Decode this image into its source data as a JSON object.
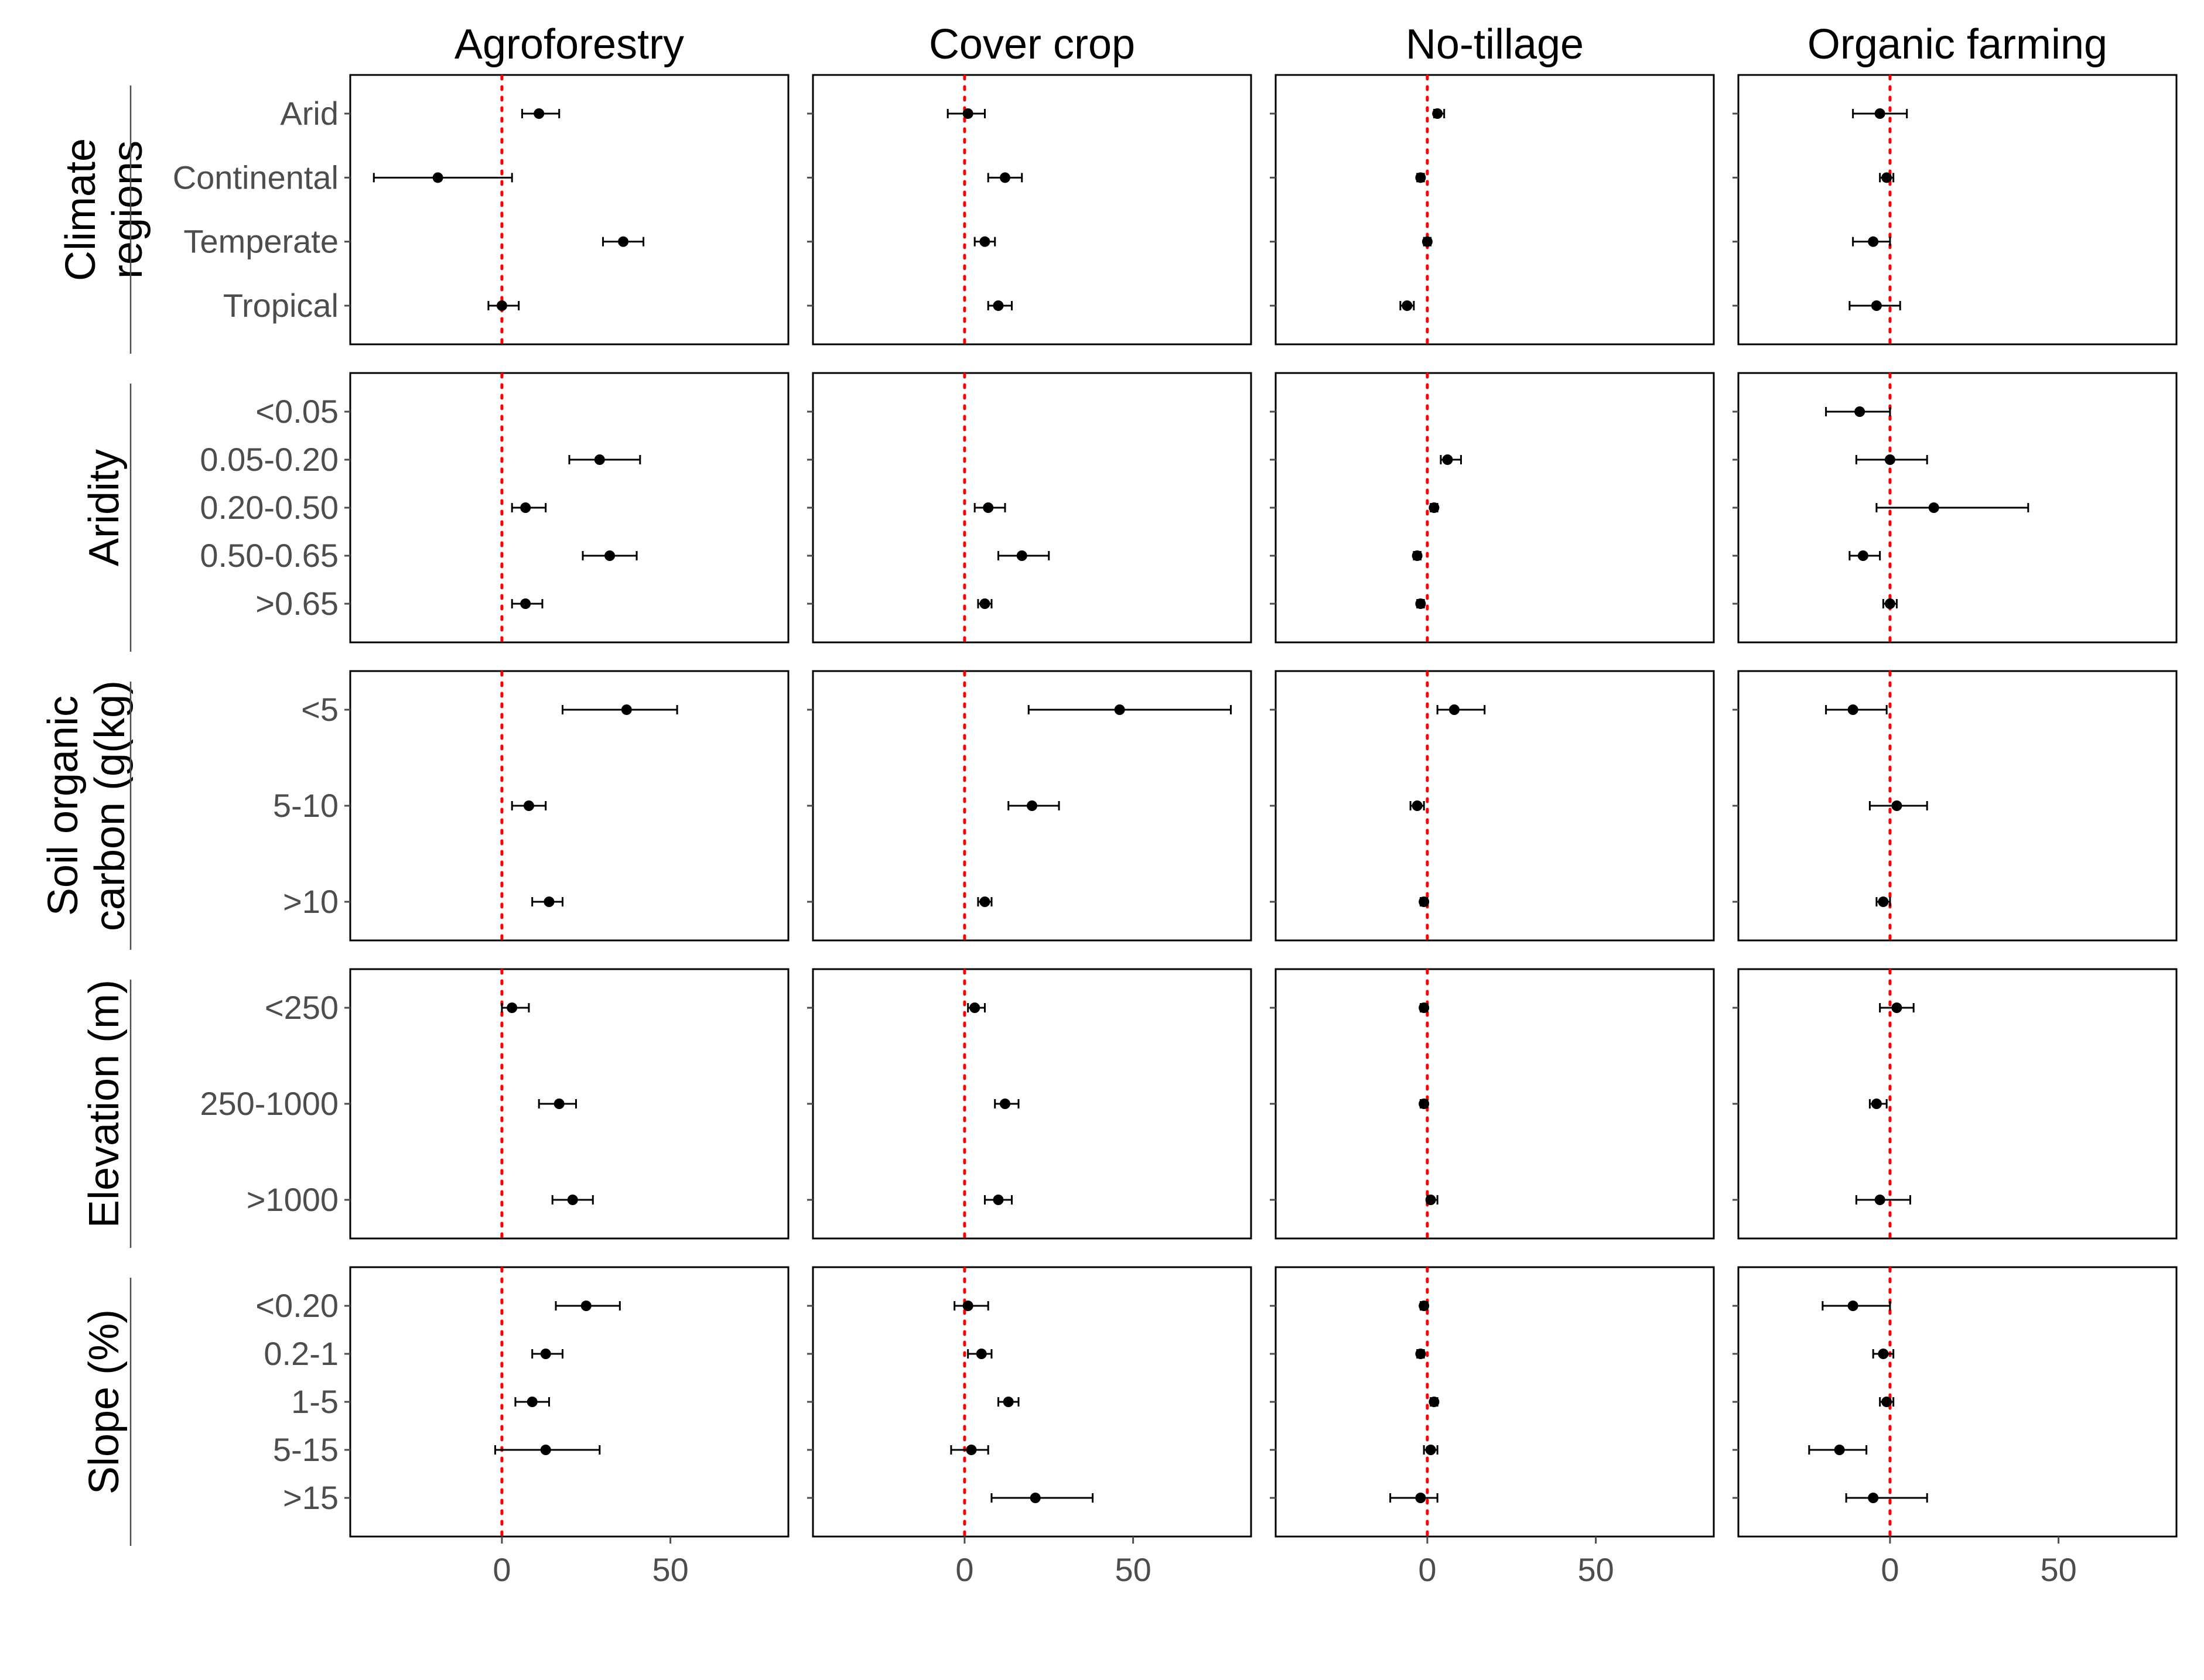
{
  "chart_data": {
    "type": "forest",
    "reference_line": {
      "x": 0,
      "color": "#ff0000",
      "style": "dotted"
    },
    "xlim": [
      -45,
      85
    ],
    "x_ticks": [
      0,
      50
    ],
    "x_tick_labels": [
      "0",
      "50"
    ],
    "grid": false,
    "columns": [
      {
        "key": "agroforestry",
        "label": "Agroforestry"
      },
      {
        "key": "cover_crop",
        "label": "Cover crop"
      },
      {
        "key": "no_tillage",
        "label": "No-tillage"
      },
      {
        "key": "organic_farming",
        "label": "Organic farming"
      }
    ],
    "rows": [
      {
        "key": "climate",
        "label_lines": [
          "Climate",
          "regions"
        ],
        "categories": [
          "Arid",
          "Continental",
          "Temperate",
          "Tropical"
        ],
        "series": [
          {
            "column": "agroforestry",
            "points": [
              {
                "mean": 11,
                "lower": 6,
                "upper": 17
              },
              {
                "mean": -19,
                "lower": -38,
                "upper": 3
              },
              {
                "mean": 36,
                "lower": 30,
                "upper": 42
              },
              {
                "mean": 0,
                "lower": -4,
                "upper": 5
              }
            ]
          },
          {
            "column": "cover_crop",
            "points": [
              {
                "mean": 1,
                "lower": -5,
                "upper": 6
              },
              {
                "mean": 12,
                "lower": 7,
                "upper": 17
              },
              {
                "mean": 6,
                "lower": 3,
                "upper": 9
              },
              {
                "mean": 10,
                "lower": 7,
                "upper": 14
              }
            ]
          },
          {
            "column": "no_tillage",
            "points": [
              {
                "mean": 3,
                "lower": 2,
                "upper": 5
              },
              {
                "mean": -2,
                "lower": -3,
                "upper": -1
              },
              {
                "mean": 0,
                "lower": -1,
                "upper": 1
              },
              {
                "mean": -6,
                "lower": -8,
                "upper": -4
              }
            ]
          },
          {
            "column": "organic_farming",
            "points": [
              {
                "mean": -3,
                "lower": -11,
                "upper": 5
              },
              {
                "mean": -1,
                "lower": -3,
                "upper": 1
              },
              {
                "mean": -5,
                "lower": -11,
                "upper": 0
              },
              {
                "mean": -4,
                "lower": -12,
                "upper": 3
              }
            ]
          }
        ]
      },
      {
        "key": "aridity",
        "label_lines": [
          "Aridity"
        ],
        "categories": [
          "<0.05",
          "0.05-0.20",
          "0.20-0.50",
          "0.50-0.65",
          ">0.65"
        ],
        "series": [
          {
            "column": "agroforestry",
            "points": [
              null,
              {
                "mean": 29,
                "lower": 20,
                "upper": 41
              },
              {
                "mean": 7,
                "lower": 3,
                "upper": 13
              },
              {
                "mean": 32,
                "lower": 24,
                "upper": 40
              },
              {
                "mean": 7,
                "lower": 3,
                "upper": 12
              }
            ]
          },
          {
            "column": "cover_crop",
            "points": [
              null,
              null,
              {
                "mean": 7,
                "lower": 3,
                "upper": 12
              },
              {
                "mean": 17,
                "lower": 10,
                "upper": 25
              },
              {
                "mean": 6,
                "lower": 4,
                "upper": 8
              }
            ]
          },
          {
            "column": "no_tillage",
            "points": [
              null,
              {
                "mean": 6,
                "lower": 4,
                "upper": 10
              },
              {
                "mean": 2,
                "lower": 1,
                "upper": 3
              },
              {
                "mean": -3,
                "lower": -4,
                "upper": -2
              },
              {
                "mean": -2,
                "lower": -3,
                "upper": -1
              }
            ]
          },
          {
            "column": "organic_farming",
            "points": [
              {
                "mean": -9,
                "lower": -19,
                "upper": 0
              },
              {
                "mean": 0,
                "lower": -10,
                "upper": 11
              },
              {
                "mean": 13,
                "lower": -4,
                "upper": 41
              },
              {
                "mean": -8,
                "lower": -12,
                "upper": -3
              },
              {
                "mean": 0,
                "lower": -2,
                "upper": 2
              }
            ]
          }
        ]
      },
      {
        "key": "soc",
        "label_lines": [
          "Soil organic",
          "carbon (g(kg)"
        ],
        "categories": [
          "<5",
          "5-10",
          ">10"
        ],
        "series": [
          {
            "column": "agroforestry",
            "points": [
              {
                "mean": 37,
                "lower": 18,
                "upper": 52
              },
              {
                "mean": 8,
                "lower": 3,
                "upper": 13
              },
              {
                "mean": 14,
                "lower": 9,
                "upper": 18
              }
            ]
          },
          {
            "column": "cover_crop",
            "points": [
              {
                "mean": 46,
                "lower": 19,
                "upper": 79
              },
              {
                "mean": 20,
                "lower": 13,
                "upper": 28
              },
              {
                "mean": 6,
                "lower": 4,
                "upper": 8
              }
            ]
          },
          {
            "column": "no_tillage",
            "points": [
              {
                "mean": 8,
                "lower": 3,
                "upper": 17
              },
              {
                "mean": -3,
                "lower": -5,
                "upper": -1
              },
              {
                "mean": -1,
                "lower": -2,
                "upper": 0
              }
            ]
          },
          {
            "column": "organic_farming",
            "points": [
              {
                "mean": -11,
                "lower": -19,
                "upper": -1
              },
              {
                "mean": 2,
                "lower": -6,
                "upper": 11
              },
              {
                "mean": -2,
                "lower": -4,
                "upper": 0
              }
            ]
          }
        ]
      },
      {
        "key": "elevation",
        "label_lines": [
          "Elevation (m)"
        ],
        "categories": [
          "<250",
          "250-1000",
          ">1000"
        ],
        "series": [
          {
            "column": "agroforestry",
            "points": [
              {
                "mean": 3,
                "lower": 0,
                "upper": 8
              },
              {
                "mean": 17,
                "lower": 11,
                "upper": 22
              },
              {
                "mean": 21,
                "lower": 15,
                "upper": 27
              }
            ]
          },
          {
            "column": "cover_crop",
            "points": [
              {
                "mean": 3,
                "lower": 1,
                "upper": 6
              },
              {
                "mean": 12,
                "lower": 9,
                "upper": 16
              },
              {
                "mean": 10,
                "lower": 6,
                "upper": 14
              }
            ]
          },
          {
            "column": "no_tillage",
            "points": [
              {
                "mean": -1,
                "lower": -2,
                "upper": 0
              },
              {
                "mean": -1,
                "lower": -2,
                "upper": 0
              },
              {
                "mean": 1,
                "lower": 0,
                "upper": 3
              }
            ]
          },
          {
            "column": "organic_farming",
            "points": [
              {
                "mean": 2,
                "lower": -3,
                "upper": 7
              },
              {
                "mean": -4,
                "lower": -6,
                "upper": -1
              },
              {
                "mean": -3,
                "lower": -10,
                "upper": 6
              }
            ]
          }
        ]
      },
      {
        "key": "slope",
        "label_lines": [
          "Slope (%)"
        ],
        "categories": [
          "<0.20",
          "0.2-1",
          "1-5",
          "5-15",
          ">15"
        ],
        "series": [
          {
            "column": "agroforestry",
            "points": [
              {
                "mean": 25,
                "lower": 16,
                "upper": 35
              },
              {
                "mean": 13,
                "lower": 9,
                "upper": 18
              },
              {
                "mean": 9,
                "lower": 4,
                "upper": 14
              },
              {
                "mean": 13,
                "lower": -2,
                "upper": 29
              },
              null
            ]
          },
          {
            "column": "cover_crop",
            "points": [
              {
                "mean": 1,
                "lower": -3,
                "upper": 7
              },
              {
                "mean": 5,
                "lower": 1,
                "upper": 8
              },
              {
                "mean": 13,
                "lower": 10,
                "upper": 16
              },
              {
                "mean": 2,
                "lower": -4,
                "upper": 7
              },
              {
                "mean": 21,
                "lower": 8,
                "upper": 38
              }
            ]
          },
          {
            "column": "no_tillage",
            "points": [
              {
                "mean": -1,
                "lower": -2,
                "upper": 0
              },
              {
                "mean": -2,
                "lower": -3,
                "upper": -1
              },
              {
                "mean": 2,
                "lower": 1,
                "upper": 3
              },
              {
                "mean": 1,
                "lower": -1,
                "upper": 3
              },
              {
                "mean": -2,
                "lower": -11,
                "upper": 3
              }
            ]
          },
          {
            "column": "organic_farming",
            "points": [
              {
                "mean": -11,
                "lower": -20,
                "upper": 0
              },
              {
                "mean": -2,
                "lower": -5,
                "upper": 1
              },
              {
                "mean": -1,
                "lower": -3,
                "upper": 1
              },
              {
                "mean": -15,
                "lower": -24,
                "upper": -7
              },
              {
                "mean": -5,
                "lower": -13,
                "upper": 11
              }
            ]
          }
        ]
      }
    ]
  }
}
